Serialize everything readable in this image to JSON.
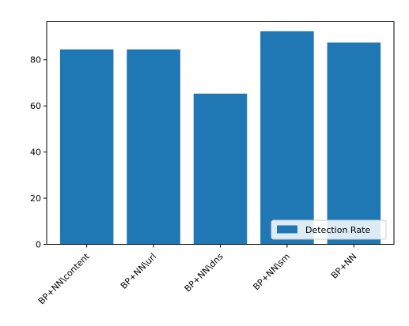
{
  "chart_data": {
    "type": "bar",
    "categories": [
      "BP+NN\\content",
      "BP+NN\\url",
      "BP+NN\\dns",
      "BP+NN\\sm",
      "BP+NN"
    ],
    "series": [
      {
        "name": "Detection Rate",
        "values": [
          84.5,
          84.5,
          65.3,
          92.4,
          87.5
        ],
        "color": "#1f77b4"
      }
    ],
    "ylim": [
      0,
      96.5
    ],
    "yticks": [
      0,
      20,
      40,
      60,
      80
    ],
    "xlabel": "",
    "ylabel": "",
    "title": "",
    "legend_position": "lower-right",
    "grid": false
  }
}
